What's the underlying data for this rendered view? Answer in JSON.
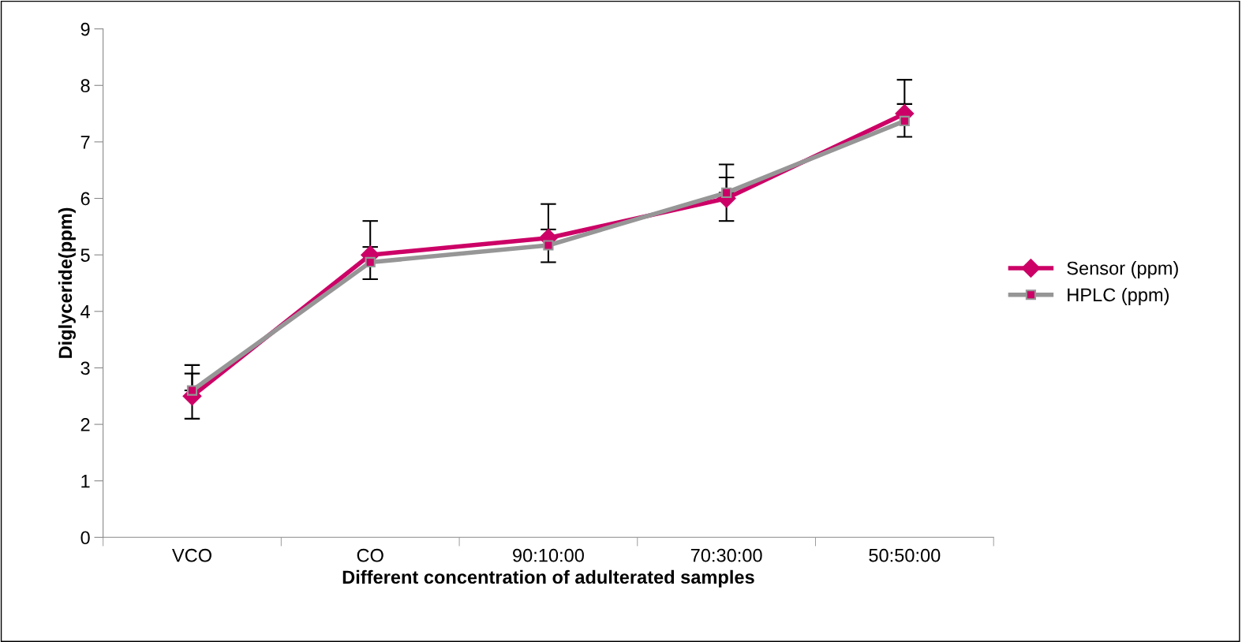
{
  "chart_data": {
    "type": "line",
    "xlabel": "Different concentration of adulterated samples",
    "ylabel": "Diglyceride(ppm)",
    "categories": [
      "VCO",
      "CO",
      "90:10:00",
      "70:30:00",
      "50:50:00"
    ],
    "ylim": [
      0,
      9
    ],
    "yticks": [
      0,
      1,
      2,
      3,
      4,
      5,
      6,
      7,
      8,
      9
    ],
    "grid": false,
    "legend": "right",
    "series": [
      {
        "name": "Sensor (ppm)",
        "color": "#cc0066",
        "marker": "diamond",
        "values": [
          2.5,
          5.0,
          5.3,
          6.0,
          7.5
        ],
        "errors": [
          [
            2.1,
            2.9
          ],
          [
            5.0,
            5.6
          ],
          [
            5.3,
            5.9
          ],
          [
            5.6,
            6.6
          ],
          [
            7.5,
            8.1
          ]
        ]
      },
      {
        "name": "HPLC (ppm)",
        "color": "#969696",
        "marker": "square",
        "values": [
          2.6,
          4.87,
          5.17,
          6.1,
          7.37
        ],
        "errors": [
          [
            2.6,
            3.05
          ],
          [
            4.57,
            5.14
          ],
          [
            4.87,
            5.45
          ],
          [
            6.1,
            6.37
          ],
          [
            7.09,
            7.67
          ]
        ]
      }
    ]
  }
}
